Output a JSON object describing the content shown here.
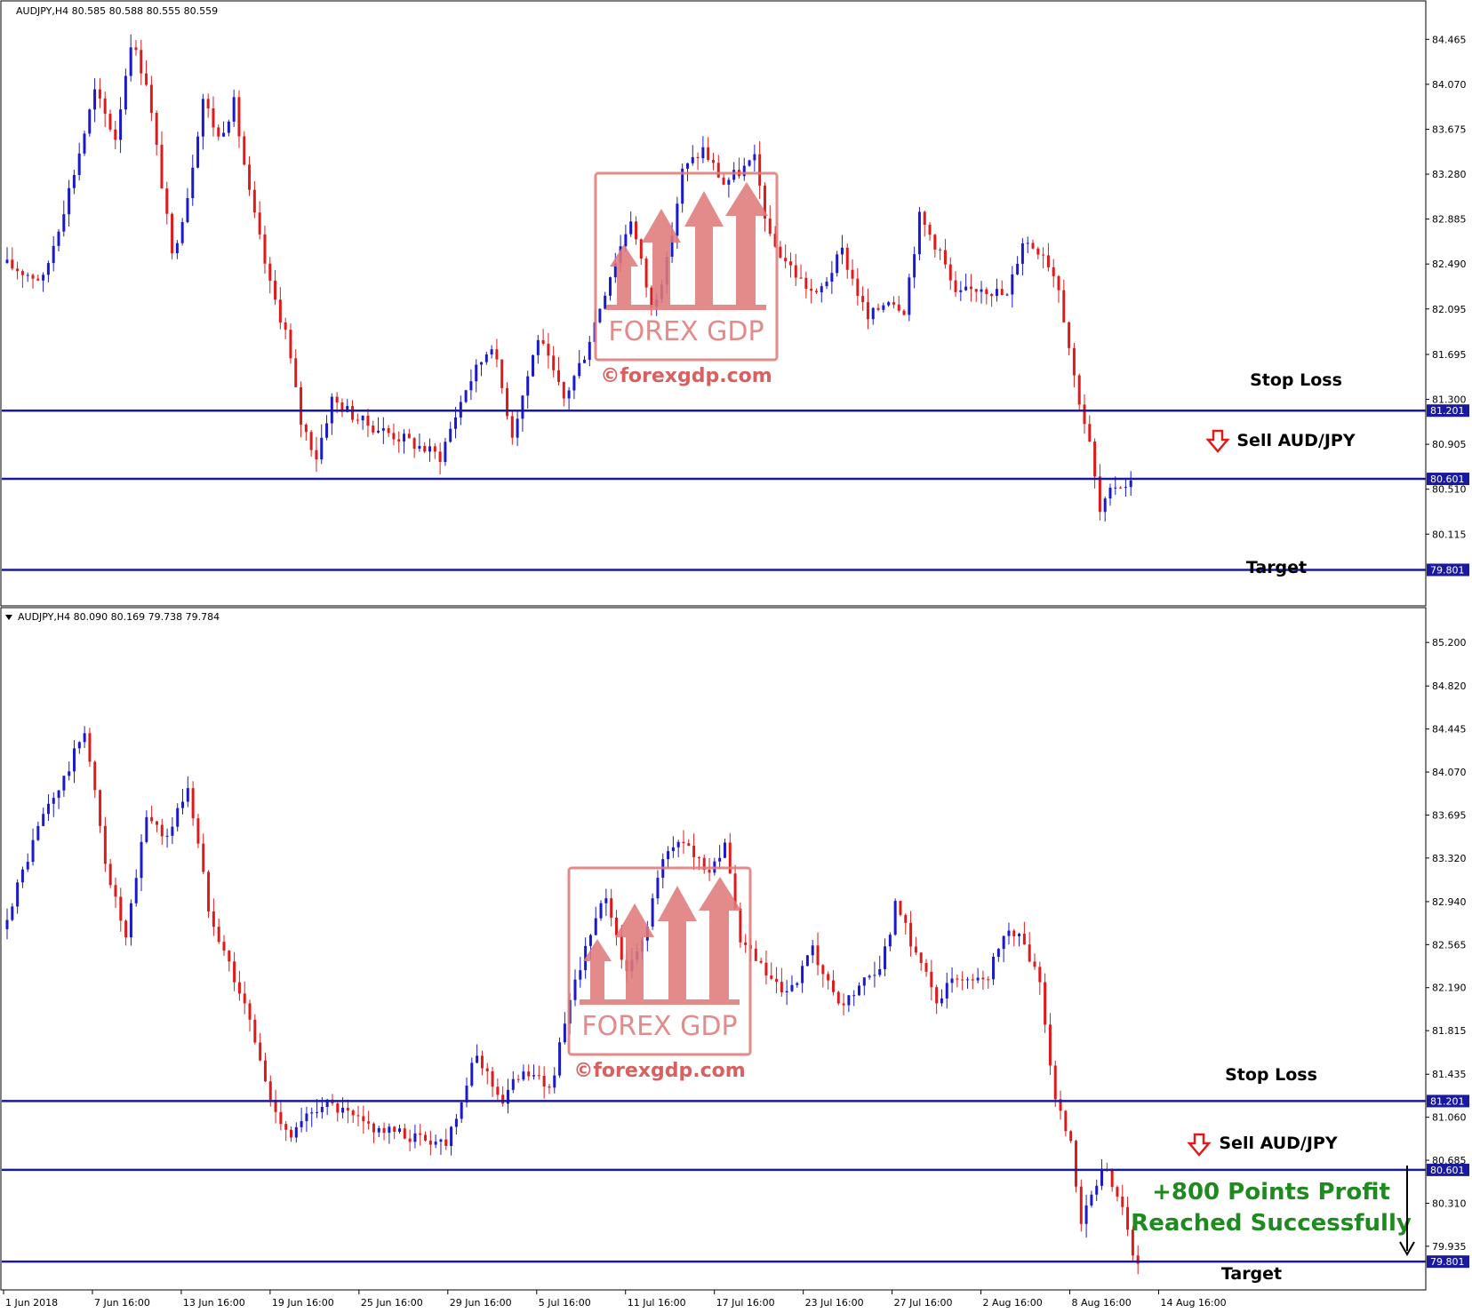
{
  "chart_data": [
    {
      "type": "candlestick",
      "header": "AUDJPY,H4  80.585 80.588 80.555 80.559",
      "yticks": [
        "84.465",
        "84.070",
        "83.675",
        "83.280",
        "82.885",
        "82.490",
        "82.095",
        "81.695",
        "81.300",
        "80.905",
        "80.510",
        "80.115"
      ],
      "ylim": [
        79.5,
        84.78
      ],
      "levels": [
        {
          "value": 81.201,
          "label": "81.201",
          "name": "Stop Loss"
        },
        {
          "value": 80.601,
          "label": "80.601",
          "name": "Sell AUD/JPY"
        },
        {
          "value": 79.801,
          "label": "79.801",
          "name": "Target"
        }
      ],
      "annotations": {
        "stop": "Stop Loss",
        "sell": "Sell AUD/JPY",
        "target": "Target"
      },
      "close_path": [
        [
          0,
          82.5
        ],
        [
          8,
          82.35
        ],
        [
          14,
          83.3
        ],
        [
          18,
          84.0
        ],
        [
          22,
          83.6
        ],
        [
          25,
          84.45
        ],
        [
          28,
          84.1
        ],
        [
          31,
          83.2
        ],
        [
          33,
          82.55
        ],
        [
          36,
          83.1
        ],
        [
          39,
          83.95
        ],
        [
          42,
          83.6
        ],
        [
          45,
          83.9
        ],
        [
          48,
          83.1
        ],
        [
          52,
          82.3
        ],
        [
          55,
          81.9
        ],
        [
          58,
          81.1
        ],
        [
          61,
          80.8
        ],
        [
          64,
          81.3
        ],
        [
          70,
          81.1
        ],
        [
          78,
          80.95
        ],
        [
          85,
          80.8
        ],
        [
          90,
          81.4
        ],
        [
          95,
          81.8
        ],
        [
          99,
          81.0
        ],
        [
          104,
          81.85
        ],
        [
          109,
          81.3
        ],
        [
          113,
          81.7
        ],
        [
          118,
          82.4
        ],
        [
          122,
          82.9
        ],
        [
          126,
          82.1
        ],
        [
          129,
          82.5
        ],
        [
          132,
          83.3
        ],
        [
          136,
          83.5
        ],
        [
          140,
          83.2
        ],
        [
          146,
          83.4
        ],
        [
          149,
          82.7
        ],
        [
          154,
          82.4
        ],
        [
          158,
          82.2
        ],
        [
          163,
          82.6
        ],
        [
          168,
          82.0
        ],
        [
          172,
          82.2
        ],
        [
          175,
          82.1
        ],
        [
          178,
          82.9
        ],
        [
          182,
          82.6
        ],
        [
          185,
          82.2
        ],
        [
          190,
          82.3
        ],
        [
          195,
          82.2
        ],
        [
          198,
          82.7
        ],
        [
          202,
          82.6
        ],
        [
          205,
          82.3
        ],
        [
          208,
          81.5
        ],
        [
          211,
          80.9
        ],
        [
          213,
          80.3
        ],
        [
          216,
          80.55
        ],
        [
          218,
          80.56
        ]
      ],
      "n_candles": 219
    },
    {
      "type": "candlestick",
      "header": "AUDJPY,H4  80.090 80.169 79.738 79.784",
      "yticks": [
        "85.200",
        "84.820",
        "84.445",
        "84.070",
        "83.695",
        "83.320",
        "82.940",
        "82.565",
        "82.190",
        "81.815",
        "81.435",
        "81.060",
        "80.685",
        "80.310",
        "79.935"
      ],
      "ylim": [
        79.57,
        85.48
      ],
      "levels": [
        {
          "value": 81.201,
          "label": "81.201",
          "name": "Stop Loss"
        },
        {
          "value": 80.601,
          "label": "80.601",
          "name": "Sell AUD/JPY"
        },
        {
          "value": 79.801,
          "label": "79.801",
          "name": "Target"
        }
      ],
      "annotations": {
        "stop": "Stop Loss",
        "sell": "Sell AUD/JPY",
        "target": "Target",
        "profit_line1": "+800 Points Profit",
        "profit_line2": "Reached Successfully"
      },
      "close_path": [
        [
          0,
          82.7
        ],
        [
          8,
          83.7
        ],
        [
          12,
          84.0
        ],
        [
          16,
          84.45
        ],
        [
          20,
          83.3
        ],
        [
          24,
          82.6
        ],
        [
          28,
          83.7
        ],
        [
          32,
          83.5
        ],
        [
          36,
          83.95
        ],
        [
          40,
          82.9
        ],
        [
          44,
          82.4
        ],
        [
          48,
          81.9
        ],
        [
          52,
          81.2
        ],
        [
          56,
          80.9
        ],
        [
          62,
          81.2
        ],
        [
          70,
          81.0
        ],
        [
          78,
          80.9
        ],
        [
          86,
          80.85
        ],
        [
          92,
          81.6
        ],
        [
          97,
          81.2
        ],
        [
          101,
          81.5
        ],
        [
          106,
          81.3
        ],
        [
          112,
          82.4
        ],
        [
          117,
          83.0
        ],
        [
          121,
          82.3
        ],
        [
          124,
          82.6
        ],
        [
          128,
          83.3
        ],
        [
          132,
          83.5
        ],
        [
          136,
          83.2
        ],
        [
          140,
          83.4
        ],
        [
          143,
          82.6
        ],
        [
          148,
          82.3
        ],
        [
          152,
          82.1
        ],
        [
          157,
          82.5
        ],
        [
          162,
          82.0
        ],
        [
          166,
          82.2
        ],
        [
          170,
          82.3
        ],
        [
          173,
          82.9
        ],
        [
          177,
          82.5
        ],
        [
          181,
          82.1
        ],
        [
          186,
          82.3
        ],
        [
          191,
          82.3
        ],
        [
          194,
          82.7
        ],
        [
          198,
          82.6
        ],
        [
          201,
          82.2
        ],
        [
          204,
          81.2
        ],
        [
          207,
          80.8
        ],
        [
          209,
          80.1
        ],
        [
          212,
          80.5
        ],
        [
          214,
          80.6
        ],
        [
          217,
          80.3
        ],
        [
          219,
          79.8
        ]
      ],
      "n_candles": 220
    }
  ],
  "xticks": [
    "1 Jun 2018",
    "7 Jun 16:00",
    "13 Jun 16:00",
    "19 Jun 16:00",
    "25 Jun 16:00",
    "29 Jun 16:00",
    "5 Jul 16:00",
    "11 Jul 16:00",
    "17 Jul 16:00",
    "23 Jul 16:00",
    "27 Jul 16:00",
    "2 Aug 16:00",
    "8 Aug 16:00",
    "14 Aug 16:00"
  ],
  "watermark": {
    "brand": "FOREX GDP",
    "url": "©forexgdp.com"
  },
  "colors": {
    "bull": "#1a1acc",
    "bear": "#e01a1a",
    "level": "#1a1aa0",
    "label_bg": "#1a1aa0",
    "watermark": "#e07a7a",
    "profit": "#1f8a1f"
  }
}
